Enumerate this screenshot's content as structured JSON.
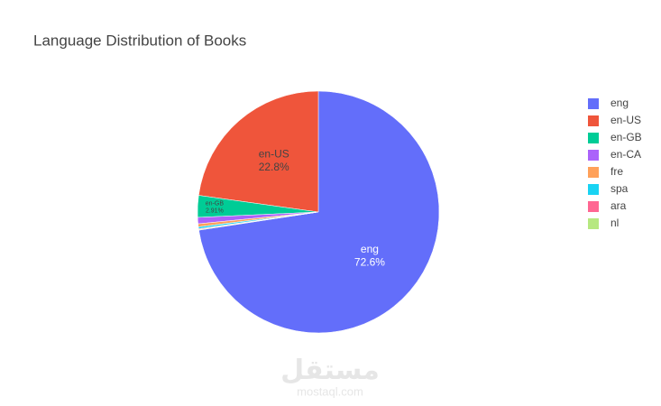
{
  "chart_data": {
    "type": "pie",
    "title": "Language Distribution of Books",
    "categories": [
      "eng",
      "en-US",
      "en-GB",
      "en-CA",
      "fre",
      "spa",
      "ara",
      "nl"
    ],
    "values": [
      72.6,
      22.8,
      2.91,
      0.85,
      0.4,
      0.25,
      0.1,
      0.09
    ],
    "value_labels": [
      "72.6%",
      "22.8%",
      "2.91%",
      null,
      null,
      null,
      null,
      null
    ],
    "colors": [
      "#636efa",
      "#ef553b",
      "#00cc96",
      "#ab63fa",
      "#ffa15a",
      "#19d3f3",
      "#ff6692",
      "#b6e880"
    ],
    "legend": "right"
  },
  "watermark": {
    "arabic": "مستقل",
    "latin": "mostaql.com"
  }
}
